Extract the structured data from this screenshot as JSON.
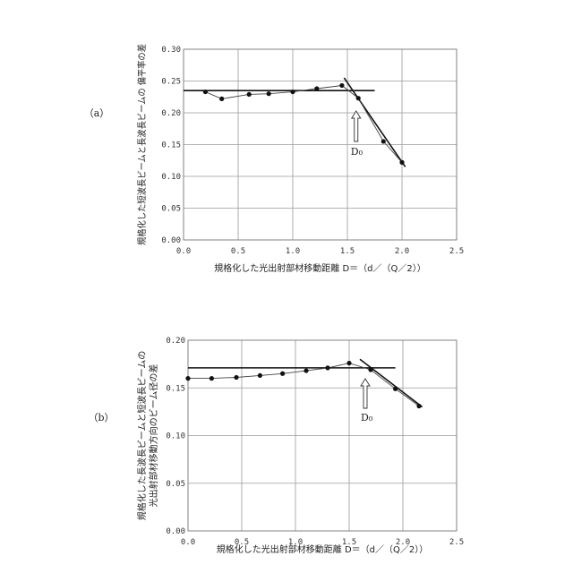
{
  "chart_data": [
    {
      "type": "line",
      "panel_label": "（a）",
      "xlabel": "規格化した光出射部材移動距離 D＝（d／（Q／2））",
      "ylabel": "規格化した短波長ビームと長波長ビームの 偏平率の差",
      "xlim": [
        0.0,
        2.5
      ],
      "ylim": [
        0.0,
        0.3
      ],
      "xticks": [
        "0.0",
        "0.5",
        "1.0",
        "1.5",
        "2.0",
        "2.5"
      ],
      "yticks": [
        "0.00",
        "0.05",
        "0.10",
        "0.15",
        "0.20",
        "0.25",
        "0.30"
      ],
      "grid": true,
      "series": [
        {
          "x": [
            0.2,
            0.35,
            0.6,
            0.78,
            1.0,
            1.22,
            1.45,
            1.6,
            1.83,
            2.0
          ],
          "y": [
            0.233,
            0.222,
            0.229,
            0.23,
            0.233,
            0.238,
            0.243,
            0.223,
            0.155,
            0.122
          ]
        }
      ],
      "fit_lines": [
        {
          "x": [
            0.0,
            1.75
          ],
          "y": [
            0.235,
            0.235
          ]
        },
        {
          "x": [
            1.47,
            2.03
          ],
          "y": [
            0.255,
            0.115
          ]
        }
      ],
      "annotation": {
        "text": "D₀",
        "x": 1.58
      }
    },
    {
      "type": "line",
      "panel_label": "（b）",
      "xlabel": "規格化した光出射部材移動距離 D＝（d／（Q／2））",
      "ylabel": "規格化した長波長ビームと短波長ビームの 光出射部材移動方向のビーム径の差",
      "xlim": [
        0.0,
        2.5
      ],
      "ylim": [
        0.0,
        0.2
      ],
      "xticks": [
        "0.0",
        "0.5",
        "1.0",
        "1.5",
        "2.0",
        "2.5"
      ],
      "yticks": [
        "0.00",
        "0.05",
        "0.10",
        "0.15",
        "0.20"
      ],
      "grid": true,
      "series": [
        {
          "x": [
            0.0,
            0.22,
            0.45,
            0.67,
            0.88,
            1.1,
            1.3,
            1.5,
            1.7,
            1.93,
            2.15
          ],
          "y": [
            0.16,
            0.16,
            0.161,
            0.163,
            0.165,
            0.168,
            0.171,
            0.176,
            0.169,
            0.149,
            0.131
          ]
        }
      ],
      "fit_lines": [
        {
          "x": [
            0.0,
            1.93
          ],
          "y": [
            0.171,
            0.171
          ]
        },
        {
          "x": [
            1.6,
            2.18
          ],
          "y": [
            0.18,
            0.13
          ]
        }
      ],
      "annotation": {
        "text": "D₀",
        "x": 1.65
      }
    }
  ]
}
